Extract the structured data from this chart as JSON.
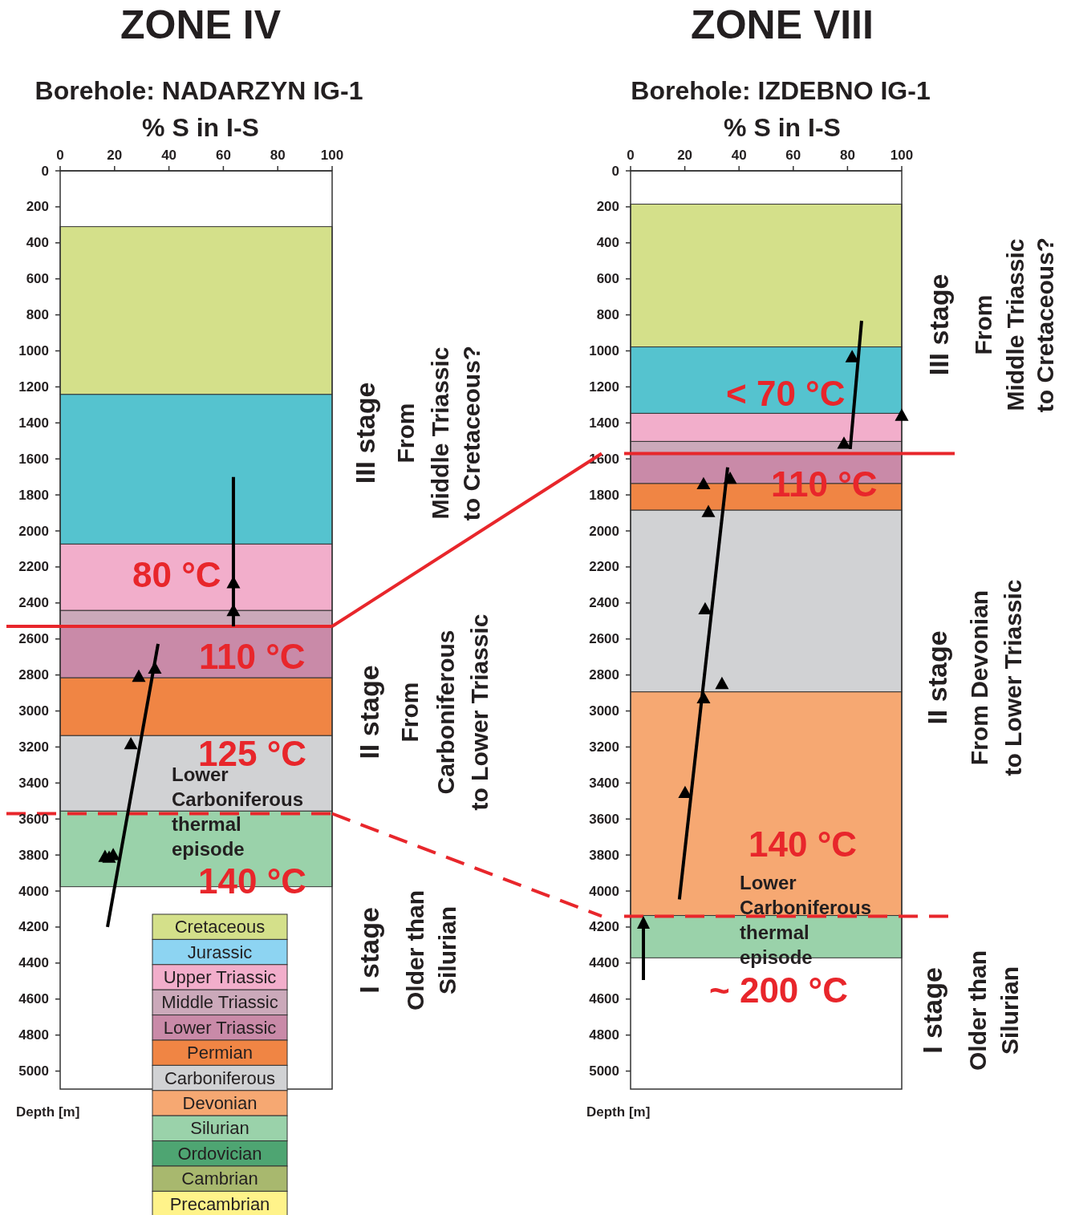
{
  "chart_data": [
    {
      "type": "scatter",
      "title": "ZONE IV",
      "subtitle": "Borehole: NADARZYN IG-1",
      "xlabel": "% S in I-S",
      "ylabel": "Depth [m]",
      "xlim": [
        0,
        100
      ],
      "xticks": [
        0,
        20,
        40,
        60,
        80,
        100
      ],
      "ylim": [
        5100,
        0
      ],
      "yticks": [
        0,
        200,
        400,
        600,
        800,
        1000,
        1200,
        1400,
        1600,
        1800,
        2000,
        2200,
        2400,
        2600,
        2800,
        3000,
        3200,
        3400,
        3600,
        3800,
        4000,
        4200,
        4400,
        4600,
        4800,
        5000
      ],
      "bands": [
        {
          "axis": "y",
          "from": 310,
          "to": 1242,
          "color": "#d4e08a"
        },
        {
          "axis": "y",
          "from": 1242,
          "to": 2073,
          "color": "#55c3cf"
        },
        {
          "axis": "y",
          "from": 2073,
          "to": 2442,
          "color": "#f2aecb"
        },
        {
          "axis": "y",
          "from": 2442,
          "to": 2535,
          "color": "#cba9ba"
        },
        {
          "axis": "y",
          "from": 2535,
          "to": 2816,
          "color": "#c98aa8"
        },
        {
          "axis": "y",
          "from": 2816,
          "to": 3137,
          "color": "#f08544"
        },
        {
          "axis": "y",
          "from": 3137,
          "to": 3556,
          "color": "#d1d2d4"
        },
        {
          "axis": "y",
          "from": 3556,
          "to": 3976,
          "color": "#9ad2aa"
        }
      ],
      "ref_lines": [
        {
          "axis": "y",
          "value": 2530,
          "color": "#e8262b",
          "line_style": "solid"
        },
        {
          "axis": "y",
          "value": 3570,
          "color": "#e8262b",
          "line_style": "dashed"
        }
      ],
      "series": [
        {
          "type": "line",
          "color": "#000000",
          "x": [
            63.7,
            63.7
          ],
          "values": [
            1700,
            2530
          ]
        },
        {
          "type": "line",
          "color": "#000000",
          "x": [
            36,
            17.4
          ],
          "values": [
            2627,
            4200
          ]
        },
        {
          "type": "scatter",
          "color": "#000000",
          "marker": "triangle",
          "x": [
            63.7,
            63.7,
            28.9,
            34.8,
            26,
            16.5,
            19.5,
            18
          ],
          "values": [
            2290,
            2445,
            2810,
            2765,
            3185,
            3810,
            3800,
            3815
          ]
        }
      ],
      "annotations": [
        "80 °C",
        "110 °C",
        "125 °C",
        "Lower\nCarboniferous\nthermal\nepisode",
        "140 °C",
        "III stage\nFrom\nMiddle Triassic\nto Cretaceous?",
        "II stage\nFrom\nCarboniferous\nto Lower Triassic",
        "I stage\nOlder than\nSilurian"
      ]
    },
    {
      "type": "scatter",
      "title": "ZONE VIII",
      "subtitle": "Borehole: IZDEBNO IG-1",
      "xlabel": "% S in I-S",
      "ylabel": "Depth [m]",
      "xlim": [
        0,
        100
      ],
      "xticks": [
        0,
        20,
        40,
        60,
        80,
        100
      ],
      "ylim": [
        5100,
        0
      ],
      "yticks": [
        0,
        200,
        400,
        600,
        800,
        1000,
        1200,
        1400,
        1600,
        1800,
        2000,
        2200,
        2400,
        2600,
        2800,
        3000,
        3200,
        3400,
        3600,
        3800,
        4000,
        4200,
        4400,
        4600,
        4800,
        5000
      ],
      "bands": [
        {
          "axis": "y",
          "from": 185,
          "to": 978,
          "color": "#d4e08a"
        },
        {
          "axis": "y",
          "from": 978,
          "to": 1347,
          "color": "#55c3cf"
        },
        {
          "axis": "y",
          "from": 1347,
          "to": 1503,
          "color": "#f2aecb"
        },
        {
          "axis": "y",
          "from": 1503,
          "to": 1575,
          "color": "#cba9ba"
        },
        {
          "axis": "y",
          "from": 1575,
          "to": 1737,
          "color": "#c98aa8"
        },
        {
          "axis": "y",
          "from": 1737,
          "to": 1885,
          "color": "#f08544"
        },
        {
          "axis": "y",
          "from": 1885,
          "to": 2894,
          "color": "#d1d2d4"
        },
        {
          "axis": "y",
          "from": 2894,
          "to": 4136,
          "color": "#f6a872"
        },
        {
          "axis": "y",
          "from": 4136,
          "to": 4371,
          "color": "#9ad2aa"
        }
      ],
      "ref_lines": [
        {
          "axis": "y",
          "value": 1570,
          "color": "#e8262b",
          "line_style": "solid"
        },
        {
          "axis": "y",
          "value": 4140,
          "color": "#e8262b",
          "line_style": "dashed"
        }
      ],
      "series": [
        {
          "type": "line",
          "color": "#000000",
          "x": [
            85.2,
            81
          ],
          "values": [
            833,
            1545
          ]
        },
        {
          "type": "line",
          "color": "#000000",
          "x": [
            35.8,
            18
          ],
          "values": [
            1647,
            4047
          ]
        },
        {
          "type": "scatter",
          "color": "#000000",
          "marker": "triangle",
          "x": [
            81.7,
            100,
            78.7,
            26.9,
            36.7,
            28.7,
            27.5,
            33.7,
            26.9,
            20.1
          ],
          "values": [
            1035,
            1360,
            1515,
            1740,
            1710,
            1895,
            2435,
            2850,
            2930,
            3455
          ]
        }
      ],
      "annotations": [
        "< 70 °C",
        "110 °C",
        "140 °C",
        "Lower\nCarboniferous\nthermal\nepisode",
        "~ 200 °C",
        "III stage\nFrom\nMiddle Triassic\nto Cretaceous?",
        "II stage\nFrom Devonian\nto Lower Triassic",
        "I stage\nOlder than\nSilurian"
      ]
    },
    {
      "type": "other",
      "categories": [
        "Cretaceous",
        "Jurassic",
        "Upper Triassic",
        "Middle Triassic",
        "Lower Triassic",
        "Permian",
        "Carboniferous",
        "Devonian",
        "Silurian",
        "Ordovician",
        "Cambrian",
        "Precambrian"
      ],
      "colors": [
        "#d4e08a",
        "#8dd4f2",
        "#f2aecb",
        "#cba9ba",
        "#c98aa8",
        "#f08544",
        "#d1d2d4",
        "#f6a872",
        "#9ad2aa",
        "#4ea572",
        "#a8b86e",
        "#fff38a"
      ]
    }
  ]
}
